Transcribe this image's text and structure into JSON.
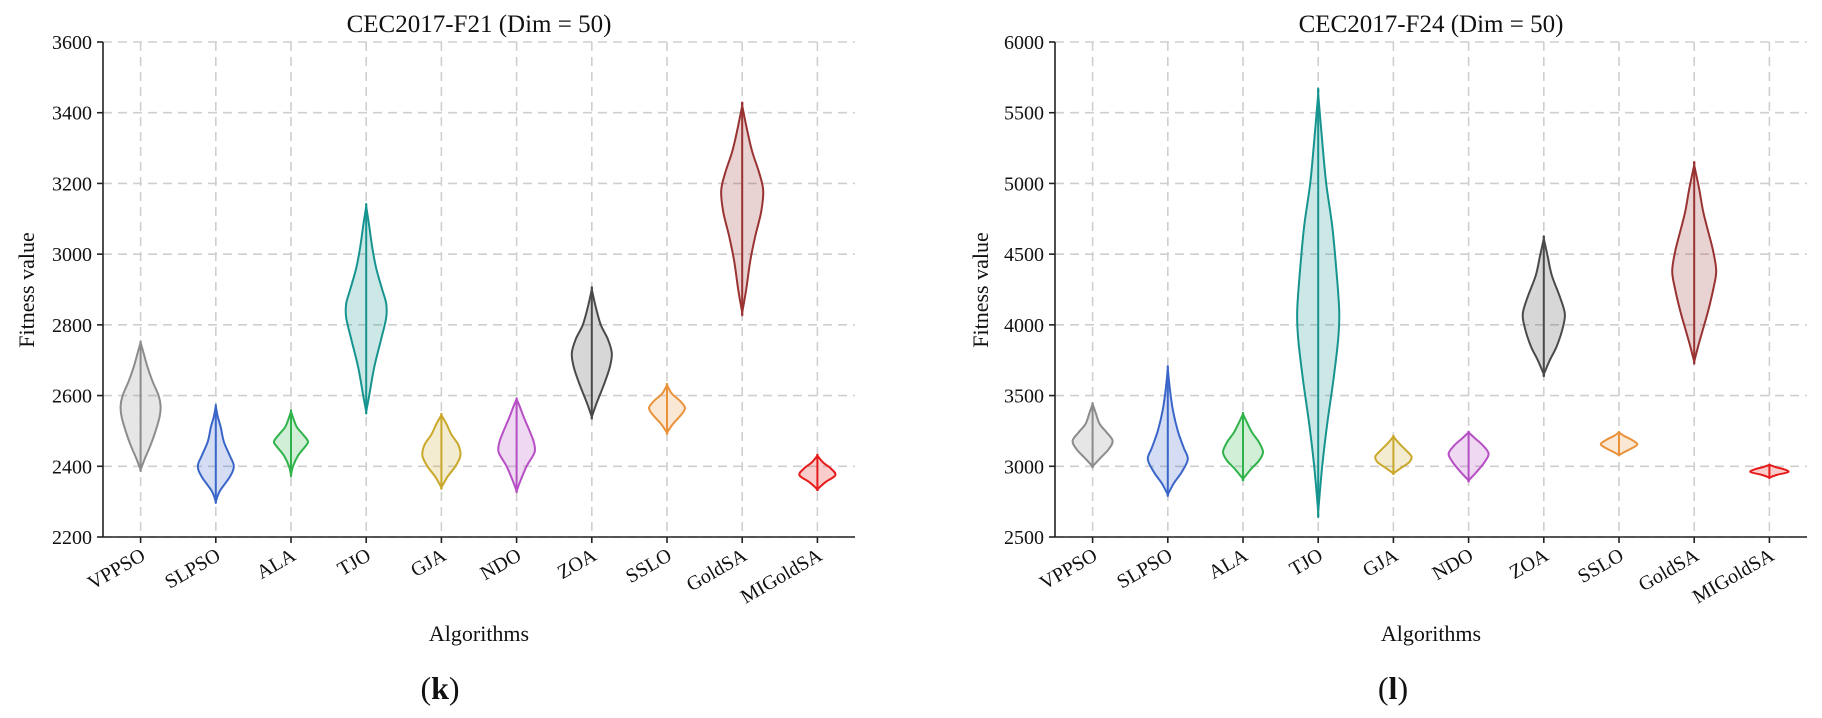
{
  "chart_data": [
    {
      "type": "violin",
      "panel_label": "k",
      "title": "CEC2017-F21 (Dim = 50)",
      "xlabel": "Algorithms",
      "ylabel": "Fitness value",
      "ylim": [
        2200,
        3600
      ],
      "yticks": [
        2200,
        2400,
        2600,
        2800,
        3000,
        3200,
        3400,
        3600
      ],
      "grid": true,
      "categories": [
        "VPPSO",
        "SLPSO",
        "ALA",
        "TJO",
        "GJA",
        "NDO",
        "ZOA",
        "SSLO",
        "GoldSA",
        "MIGoldSA"
      ],
      "series": [
        {
          "category": "VPPSO",
          "color": "#8c8c8c",
          "min": 2390,
          "max": 2750,
          "profile": [
            [
              2390,
              0
            ],
            [
              2420,
              4
            ],
            [
              2460,
              10
            ],
            [
              2500,
              15
            ],
            [
              2540,
              19
            ],
            [
              2570,
              20
            ],
            [
              2600,
              18
            ],
            [
              2640,
              12
            ],
            [
              2680,
              7
            ],
            [
              2720,
              3
            ],
            [
              2750,
              0
            ]
          ]
        },
        {
          "category": "SLPSO",
          "color": "#3a66c9",
          "min": 2300,
          "max": 2570,
          "profile": [
            [
              2300,
              0
            ],
            [
              2330,
              4
            ],
            [
              2370,
              14
            ],
            [
              2400,
              18
            ],
            [
              2430,
              14
            ],
            [
              2470,
              8
            ],
            [
              2510,
              5
            ],
            [
              2540,
              2
            ],
            [
              2570,
              0
            ]
          ]
        },
        {
          "category": "ALA",
          "color": "#2fb34a",
          "min": 2375,
          "max": 2555,
          "profile": [
            [
              2375,
              0
            ],
            [
              2400,
              2
            ],
            [
              2430,
              7
            ],
            [
              2455,
              14
            ],
            [
              2470,
              17
            ],
            [
              2490,
              12
            ],
            [
              2510,
              6
            ],
            [
              2530,
              3
            ],
            [
              2555,
              0
            ]
          ]
        },
        {
          "category": "TJO",
          "color": "#17948f",
          "min": 2555,
          "max": 3135,
          "profile": [
            [
              2555,
              0
            ],
            [
              2600,
              3
            ],
            [
              2680,
              8
            ],
            [
              2760,
              15
            ],
            [
              2820,
              20
            ],
            [
              2860,
              20
            ],
            [
              2900,
              16
            ],
            [
              2960,
              10
            ],
            [
              3020,
              6
            ],
            [
              3080,
              3
            ],
            [
              3135,
              0
            ]
          ]
        },
        {
          "category": "GJA",
          "color": "#c9a82c",
          "min": 2340,
          "max": 2545,
          "profile": [
            [
              2340,
              0
            ],
            [
              2370,
              6
            ],
            [
              2400,
              14
            ],
            [
              2430,
              19
            ],
            [
              2460,
              17
            ],
            [
              2490,
              10
            ],
            [
              2520,
              5
            ],
            [
              2545,
              0
            ]
          ]
        },
        {
          "category": "NDO",
          "color": "#b64fc4",
          "min": 2330,
          "max": 2590,
          "profile": [
            [
              2330,
              0
            ],
            [
              2360,
              4
            ],
            [
              2400,
              10
            ],
            [
              2440,
              18
            ],
            [
              2470,
              17
            ],
            [
              2500,
              13
            ],
            [
              2540,
              7
            ],
            [
              2570,
              3
            ],
            [
              2590,
              0
            ]
          ]
        },
        {
          "category": "ZOA",
          "color": "#4a4a4a",
          "min": 2540,
          "max": 2900,
          "profile": [
            [
              2540,
              0
            ],
            [
              2580,
              5
            ],
            [
              2630,
              12
            ],
            [
              2680,
              18
            ],
            [
              2720,
              20
            ],
            [
              2760,
              16
            ],
            [
              2800,
              9
            ],
            [
              2850,
              4
            ],
            [
              2900,
              0
            ]
          ]
        },
        {
          "category": "SSLO",
          "color": "#e9923a",
          "min": 2495,
          "max": 2630,
          "profile": [
            [
              2495,
              0
            ],
            [
              2520,
              6
            ],
            [
              2545,
              14
            ],
            [
              2565,
              18
            ],
            [
              2585,
              13
            ],
            [
              2605,
              5
            ],
            [
              2630,
              0
            ]
          ]
        },
        {
          "category": "GoldSA",
          "color": "#993333",
          "min": 2835,
          "max": 3420,
          "profile": [
            [
              2835,
              0
            ],
            [
              2900,
              4
            ],
            [
              2980,
              8
            ],
            [
              3050,
              13
            ],
            [
              3120,
              19
            ],
            [
              3180,
              21
            ],
            [
              3230,
              17
            ],
            [
              3290,
              10
            ],
            [
              3350,
              5
            ],
            [
              3420,
              0
            ]
          ]
        },
        {
          "category": "MIGoldSA",
          "color": "#e61c1c",
          "min": 2335,
          "max": 2430,
          "profile": [
            [
              2335,
              0
            ],
            [
              2355,
              8
            ],
            [
              2375,
              18
            ],
            [
              2395,
              13
            ],
            [
              2410,
              6
            ],
            [
              2430,
              0
            ]
          ]
        }
      ]
    },
    {
      "type": "violin",
      "panel_label": "l",
      "title": "CEC2017-F24 (Dim = 50)",
      "xlabel": "Algorithms",
      "ylabel": "Fitness value",
      "ylim": [
        2500,
        6000
      ],
      "yticks": [
        2500,
        3000,
        3500,
        4000,
        4500,
        5000,
        5500,
        6000
      ],
      "grid": true,
      "categories": [
        "VPPSO",
        "SLPSO",
        "ALA",
        "TJO",
        "GJA",
        "NDO",
        "ZOA",
        "SSLO",
        "GoldSA",
        "MIGoldSA"
      ],
      "series": [
        {
          "category": "VPPSO",
          "color": "#8c8c8c",
          "min": 3000,
          "max": 3440,
          "profile": [
            [
              3000,
              0
            ],
            [
              3060,
              8
            ],
            [
              3120,
              16
            ],
            [
              3180,
              20
            ],
            [
              3240,
              14
            ],
            [
              3300,
              7
            ],
            [
              3380,
              3
            ],
            [
              3440,
              0
            ]
          ]
        },
        {
          "category": "SLPSO",
          "color": "#3a66c9",
          "min": 2800,
          "max": 3690,
          "profile": [
            [
              2800,
              0
            ],
            [
              2880,
              6
            ],
            [
              2960,
              14
            ],
            [
              3050,
              20
            ],
            [
              3130,
              16
            ],
            [
              3250,
              10
            ],
            [
              3400,
              5
            ],
            [
              3550,
              2
            ],
            [
              3690,
              0
            ]
          ]
        },
        {
          "category": "ALA",
          "color": "#2fb34a",
          "min": 2910,
          "max": 3370,
          "profile": [
            [
              2910,
              0
            ],
            [
              2980,
              8
            ],
            [
              3040,
              16
            ],
            [
              3100,
              20
            ],
            [
              3170,
              16
            ],
            [
              3240,
              9
            ],
            [
              3310,
              4
            ],
            [
              3370,
              0
            ]
          ]
        },
        {
          "category": "TJO",
          "color": "#17948f",
          "min": 2680,
          "max": 5630,
          "profile": [
            [
              2680,
              0
            ],
            [
              3000,
              4
            ],
            [
              3300,
              9
            ],
            [
              3600,
              15
            ],
            [
              3900,
              20
            ],
            [
              4100,
              21
            ],
            [
              4400,
              18
            ],
            [
              4700,
              14
            ],
            [
              5000,
              8
            ],
            [
              5300,
              4
            ],
            [
              5630,
              0
            ]
          ]
        },
        {
          "category": "GJA",
          "color": "#c9a82c",
          "min": 2950,
          "max": 3210,
          "profile": [
            [
              2950,
              0
            ],
            [
              2990,
              8
            ],
            [
              3030,
              16
            ],
            [
              3070,
              18
            ],
            [
              3110,
              13
            ],
            [
              3160,
              6
            ],
            [
              3210,
              0
            ]
          ]
        },
        {
          "category": "NDO",
          "color": "#b64fc4",
          "min": 2900,
          "max": 3240,
          "profile": [
            [
              2900,
              0
            ],
            [
              2960,
              8
            ],
            [
              3030,
              16
            ],
            [
              3090,
              20
            ],
            [
              3150,
              14
            ],
            [
              3200,
              6
            ],
            [
              3240,
              0
            ]
          ]
        },
        {
          "category": "ZOA",
          "color": "#4a4a4a",
          "min": 3650,
          "max": 4610,
          "profile": [
            [
              3650,
              0
            ],
            [
              3750,
              6
            ],
            [
              3850,
              13
            ],
            [
              3980,
              19
            ],
            [
              4080,
              21
            ],
            [
              4200,
              16
            ],
            [
              4350,
              8
            ],
            [
              4480,
              4
            ],
            [
              4610,
              0
            ]
          ]
        },
        {
          "category": "SSLO",
          "color": "#e9923a",
          "min": 3080,
          "max": 3240,
          "profile": [
            [
              3080,
              0
            ],
            [
              3110,
              8
            ],
            [
              3140,
              16
            ],
            [
              3160,
              18
            ],
            [
              3190,
              12
            ],
            [
              3215,
              5
            ],
            [
              3240,
              0
            ]
          ]
        },
        {
          "category": "GoldSA",
          "color": "#993333",
          "min": 3740,
          "max": 5130,
          "profile": [
            [
              3740,
              0
            ],
            [
              3850,
              4
            ],
            [
              3950,
              8
            ],
            [
              4100,
              14
            ],
            [
              4250,
              19
            ],
            [
              4380,
              22
            ],
            [
              4520,
              19
            ],
            [
              4660,
              14
            ],
            [
              4800,
              9
            ],
            [
              4960,
              5
            ],
            [
              5130,
              0
            ]
          ]
        },
        {
          "category": "MIGoldSA",
          "color": "#e61c1c",
          "min": 2920,
          "max": 3010,
          "profile": [
            [
              2920,
              0
            ],
            [
              2940,
              8
            ],
            [
              2960,
              19
            ],
            [
              2980,
              14
            ],
            [
              2995,
              6
            ],
            [
              3010,
              0
            ]
          ]
        }
      ]
    }
  ]
}
